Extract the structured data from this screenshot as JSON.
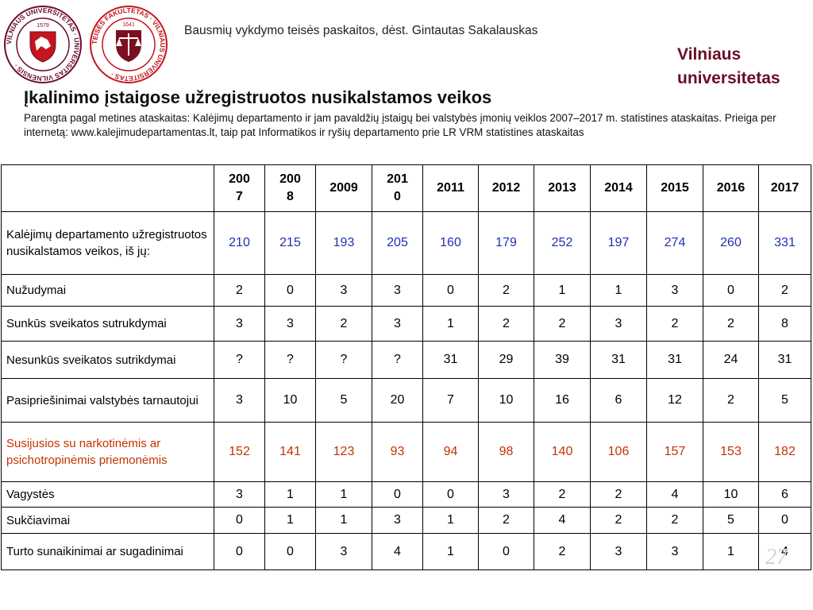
{
  "logos": {
    "vu": {
      "ring_text": "VILNIAUS UNIVERSITETAS · UNIVERSITAS VILNENSIS ·",
      "year": "1579"
    },
    "tf": {
      "ring_text": "TEISĖS FAKULTETAS · VILNIAUS UNIVERSITETAS ·",
      "year": "1641"
    }
  },
  "header": {
    "course": "Bausmių vykdymo teisės paskaitos, dėst. Gintautas Sakalauskas"
  },
  "brand": {
    "line1": "Vilniaus",
    "line2": "universitetas"
  },
  "title": "Įkalinimo įstaigose užregistruotos nusikalstamos veikos",
  "subtitle": "Parengta pagal metines ataskaitas: Kalėjimų departamento ir jam pavaldžių įstaigų bei valstybės įmonių veiklos 2007–2017 m. statistines ataskaitas. Prieiga per internetą: www.kalejimudepartamentas.lt, taip pat  Informatikos ir ryšių departamento prie LR VRM statistines ataskaitas",
  "table": {
    "years": [
      "2007",
      "2008",
      "2009",
      "2010",
      "2011",
      "2012",
      "2013",
      "2014",
      "2015",
      "2016",
      "2017"
    ],
    "rows": [
      {
        "label": "Kalėjimų departamento užregistruotos nusikalstamos veikos, iš jų:",
        "values": [
          "210",
          "215",
          "193",
          "205",
          "160",
          "179",
          "252",
          "197",
          "274",
          "260",
          "331"
        ]
      },
      {
        "label": "Nužudymai",
        "values": [
          "2",
          "0",
          "3",
          "3",
          "0",
          "2",
          "1",
          "1",
          "3",
          "0",
          "2"
        ]
      },
      {
        "label": "Sunkūs sveikatos sutrukdymai",
        "values": [
          "3",
          "3",
          "2",
          "3",
          "1",
          "2",
          "2",
          "3",
          "2",
          "2",
          "8"
        ]
      },
      {
        "label": "Nesunkūs sveikatos sutrikdymai",
        "values": [
          "?",
          "?",
          "?",
          "?",
          "31",
          "29",
          "39",
          "31",
          "31",
          "24",
          "31"
        ]
      },
      {
        "label": "Pasipriešinimai valstybės tarnautojui",
        "values": [
          "3",
          "10",
          "5",
          "20",
          "7",
          "10",
          "16",
          "6",
          "12",
          "2",
          "5"
        ]
      },
      {
        "label": "Susijusios su narkotinėmis ar psichotropinėmis priemonėmis",
        "values": [
          "152",
          "141",
          "123",
          "93",
          "94",
          "98",
          "140",
          "106",
          "157",
          "153",
          "182"
        ]
      },
      {
        "label": "Vagystės",
        "values": [
          "3",
          "1",
          "1",
          "0",
          "0",
          "3",
          "2",
          "2",
          "4",
          "10",
          "6"
        ]
      },
      {
        "label": "Sukčiavimai",
        "values": [
          "0",
          "1",
          "1",
          "3",
          "1",
          "2",
          "4",
          "2",
          "2",
          "5",
          "0"
        ]
      },
      {
        "label": "Turto sunaikinimai ar sugadinimai",
        "values": [
          "0",
          "0",
          "3",
          "4",
          "1",
          "0",
          "2",
          "3",
          "3",
          "1",
          "4"
        ]
      }
    ]
  },
  "page_number": "27",
  "colors": {
    "brand": "#6b0d26",
    "total_row": "#1f2fb8",
    "narcotics_row": "#c33400"
  }
}
